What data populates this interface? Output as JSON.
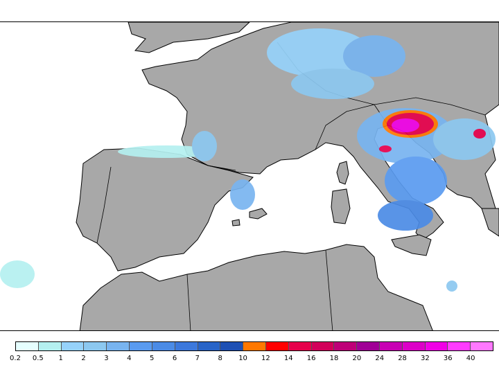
{
  "map": {
    "land_color": "#a8a8a8",
    "sea_color": "#ffffff",
    "border_color": "#000000",
    "regions": [
      "France",
      "Spain",
      "Portugal",
      "Italy",
      "Corsica",
      "Sardinia",
      "Sicily",
      "Balearic Islands",
      "Algeria",
      "Morocco",
      "Tunisia",
      "Switzerland",
      "Austria",
      "Croatia"
    ]
  },
  "legend": {
    "labels": [
      "0.2",
      "0.5",
      "1",
      "2",
      "3",
      "4",
      "5",
      "6",
      "7",
      "8",
      "10",
      "12",
      "14",
      "16",
      "18",
      "20",
      "24",
      "28",
      "32",
      "36",
      "40"
    ],
    "colors": [
      "#e6ffff",
      "#b4f0f0",
      "#96d2fa",
      "#8cc8f0",
      "#78b4f0",
      "#5a9bf0",
      "#4b8be6",
      "#3c78dc",
      "#2864c8",
      "#1e50b4",
      "#ff7800",
      "#ff0000",
      "#e6004b",
      "#d2005a",
      "#be0078",
      "#a00096",
      "#c800b4",
      "#dc00c8",
      "#f000e6",
      "#ff3cff",
      "#ff78ff"
    ]
  }
}
